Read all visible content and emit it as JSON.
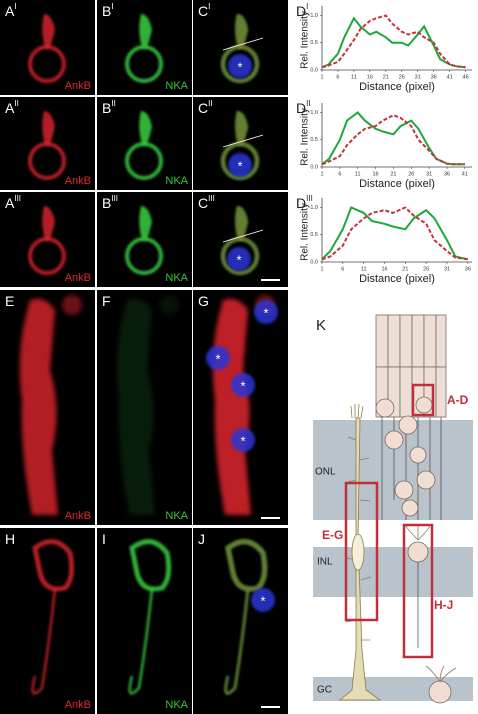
{
  "marker": "*",
  "panels": [
    {
      "letter": "A",
      "sup": "I",
      "stain": "AnkB"
    },
    {
      "letter": "B",
      "sup": "I",
      "stain": "NKA"
    },
    {
      "letter": "C",
      "sup": "I"
    },
    {
      "letter": "A",
      "sup": "II",
      "stain": "AnkB"
    },
    {
      "letter": "B",
      "sup": "II",
      "stain": "NKA"
    },
    {
      "letter": "C",
      "sup": "II"
    },
    {
      "letter": "A",
      "sup": "III",
      "stain": "AnkB"
    },
    {
      "letter": "B",
      "sup": "III",
      "stain": "NKA"
    },
    {
      "letter": "C",
      "sup": "III"
    },
    {
      "letter": "E",
      "stain": "AnkB"
    },
    {
      "letter": "F",
      "stain": "NKA"
    },
    {
      "letter": "G"
    },
    {
      "letter": "H",
      "stain": "AnkB"
    },
    {
      "letter": "I",
      "stain": "NKA"
    },
    {
      "letter": "J"
    }
  ],
  "plots": [
    {
      "type": "line",
      "letter": "D",
      "sup": "I",
      "ylabel": "Rel. Intensity",
      "xlabel": "Distance (pixel)",
      "xlim": [
        1,
        48
      ],
      "ylim": [
        0,
        1.1
      ],
      "xticks": [
        1,
        6,
        11,
        16,
        21,
        26,
        31,
        36,
        41,
        46
      ],
      "yticks": [
        {
          "value": 0,
          "label": "0.0"
        },
        0.5,
        {
          "value": 1,
          "label": "1.0"
        }
      ],
      "x": [
        1,
        3,
        6,
        8,
        11,
        13,
        16,
        18,
        21,
        23,
        26,
        28,
        31,
        33,
        36,
        38,
        41,
        43,
        46
      ],
      "series": [
        {
          "color": "#1fa83a",
          "dash": false,
          "values": [
            0.05,
            0.1,
            0.3,
            0.6,
            0.95,
            0.8,
            0.65,
            0.7,
            0.6,
            0.5,
            0.5,
            0.45,
            0.65,
            0.8,
            0.45,
            0.2,
            0.1,
            0.07,
            0.05
          ]
        },
        {
          "color": "#c8323a",
          "dash": true,
          "values": [
            0.05,
            0.08,
            0.15,
            0.3,
            0.55,
            0.75,
            0.9,
            0.95,
            1.0,
            0.85,
            0.7,
            0.65,
            0.7,
            0.6,
            0.5,
            0.3,
            0.1,
            0.07,
            0.05
          ]
        }
      ]
    },
    {
      "type": "line",
      "letter": "D",
      "sup": "II",
      "ylabel": "Rel. Intensity",
      "xlabel": "Distance (pixel)",
      "xlim": [
        1,
        43
      ],
      "ylim": [
        0,
        1.1
      ],
      "xticks": [
        1,
        6,
        11,
        16,
        21,
        26,
        31,
        36,
        41
      ],
      "yticks": [
        {
          "value": 0,
          "label": "0.0"
        },
        0.5,
        {
          "value": 1,
          "label": "1.0"
        }
      ],
      "x": [
        1,
        3,
        6,
        8,
        11,
        13,
        16,
        18,
        21,
        23,
        26,
        28,
        31,
        33,
        36,
        38,
        41
      ],
      "series": [
        {
          "color": "#1fa83a",
          "dash": false,
          "values": [
            0.05,
            0.15,
            0.5,
            0.85,
            1.0,
            0.85,
            0.7,
            0.65,
            0.6,
            0.75,
            0.85,
            0.7,
            0.35,
            0.15,
            0.06,
            0.05,
            0.05
          ]
        },
        {
          "color": "#c8323a",
          "dash": true,
          "values": [
            0.05,
            0.1,
            0.2,
            0.4,
            0.6,
            0.7,
            0.75,
            0.85,
            0.95,
            0.9,
            0.75,
            0.5,
            0.3,
            0.15,
            0.06,
            0.05,
            0.05
          ]
        }
      ]
    },
    {
      "type": "line",
      "letter": "D",
      "sup": "III",
      "ylabel": "Rel. Intensity",
      "xlabel": "Distance (pixel)",
      "xlim": [
        1,
        37
      ],
      "ylim": [
        0,
        1.1
      ],
      "xticks": [
        1,
        6,
        11,
        16,
        21,
        26,
        31,
        36
      ],
      "yticks": [
        {
          "value": 0,
          "label": "0.0"
        },
        0.5,
        {
          "value": 1,
          "label": "1.0"
        }
      ],
      "x": [
        1,
        3,
        6,
        8,
        11,
        13,
        16,
        18,
        21,
        23,
        26,
        28,
        31,
        33,
        36
      ],
      "series": [
        {
          "color": "#1fa83a",
          "dash": false,
          "values": [
            0.05,
            0.2,
            0.6,
            1.0,
            0.9,
            0.75,
            0.7,
            0.65,
            0.6,
            0.8,
            0.95,
            0.8,
            0.4,
            0.1,
            0.05
          ]
        },
        {
          "color": "#c8323a",
          "dash": true,
          "values": [
            0.05,
            0.1,
            0.3,
            0.6,
            0.8,
            0.9,
            0.95,
            0.9,
            1.0,
            0.85,
            0.7,
            0.4,
            0.2,
            0.08,
            0.05
          ]
        }
      ]
    }
  ],
  "diagram": {
    "label": "K",
    "boxes": [
      "A-D",
      "E-G",
      "H-J"
    ],
    "layers": [
      "ONL",
      "INL",
      "GC"
    ]
  }
}
